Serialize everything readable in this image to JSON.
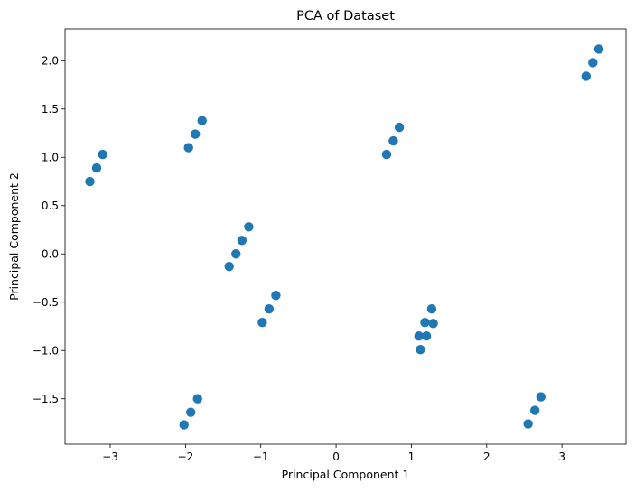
{
  "chart_data": {
    "type": "scatter",
    "title": "PCA of Dataset",
    "xlabel": "Principal Component 1",
    "ylabel": "Principal Component 2",
    "xlim": [
      -3.6,
      3.85
    ],
    "ylim": [
      -1.97,
      2.33
    ],
    "xticks": [
      -3,
      -2,
      -1,
      0,
      1,
      2,
      3
    ],
    "xtick_labels": [
      "−3",
      "−2",
      "−1",
      "0",
      "1",
      "2",
      "3"
    ],
    "yticks": [
      -1.5,
      -1.0,
      -0.5,
      0.0,
      0.5,
      1.0,
      1.5,
      2.0
    ],
    "ytick_labels": [
      "−1.5",
      "−1.0",
      "−0.5",
      "0.0",
      "0.5",
      "1.0",
      "1.5",
      "2.0"
    ],
    "grid": false,
    "marker_color": "#1f77b4",
    "points": [
      [
        -3.27,
        0.75
      ],
      [
        -3.18,
        0.89
      ],
      [
        -3.1,
        1.03
      ],
      [
        -1.96,
        1.1
      ],
      [
        -1.87,
        1.24
      ],
      [
        -1.78,
        1.38
      ],
      [
        -1.42,
        -0.13
      ],
      [
        -1.33,
        0.0
      ],
      [
        -1.25,
        0.14
      ],
      [
        -1.16,
        0.28
      ],
      [
        -0.98,
        -0.71
      ],
      [
        -0.89,
        -0.57
      ],
      [
        -0.8,
        -0.43
      ],
      [
        -2.02,
        -1.77
      ],
      [
        -1.93,
        -1.64
      ],
      [
        -1.84,
        -1.5
      ],
      [
        0.67,
        1.03
      ],
      [
        0.76,
        1.17
      ],
      [
        0.84,
        1.31
      ],
      [
        1.1,
        -0.85
      ],
      [
        1.12,
        -0.99
      ],
      [
        1.18,
        -0.71
      ],
      [
        1.2,
        -0.85
      ],
      [
        1.27,
        -0.57
      ],
      [
        1.29,
        -0.72
      ],
      [
        2.55,
        -1.76
      ],
      [
        2.64,
        -1.62
      ],
      [
        2.72,
        -1.48
      ],
      [
        3.32,
        1.84
      ],
      [
        3.41,
        1.98
      ],
      [
        3.49,
        2.12
      ]
    ]
  }
}
